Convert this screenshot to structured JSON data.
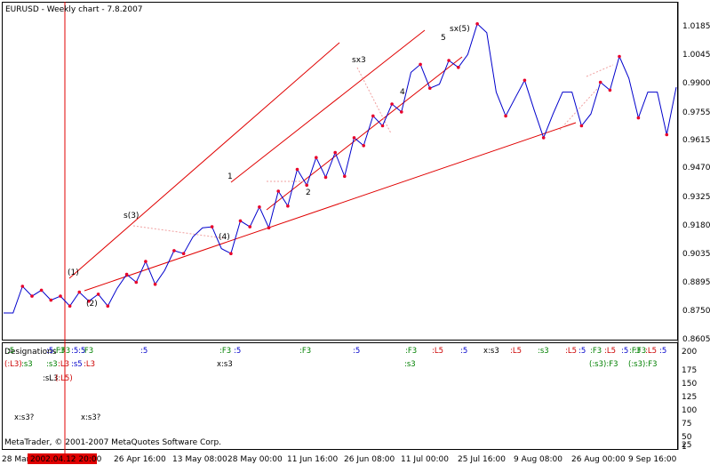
{
  "chart_title": "EURUSD - Weekly chart - 7.8.2007",
  "copyright": "MetaTrader, © 2001-2007 MetaQuotes Software Corp.",
  "indicator_label": "Designations",
  "crosshair_date": "2002.04.12 20:00",
  "colors": {
    "price": "#0000cc",
    "channel": "#e00000",
    "marker": "#e8002a",
    "green": "#008000",
    "red": "#cc0000",
    "blue": "#0000cc",
    "crosshair": "#e00000"
  },
  "price_axis": [
    "1.0185",
    "1.0045",
    "0.9900",
    "0.9755",
    "0.9615",
    "0.9470",
    "0.9325",
    "0.9180",
    "0.9035",
    "0.8895",
    "0.8750",
    "0.8605"
  ],
  "sub_axis": [
    "200",
    "175",
    "150",
    "125",
    "100",
    "75",
    "50",
    "25",
    "1"
  ],
  "time_axis": [
    "28 Mar",
    "26 Apr 16:00",
    "13 May 08:00",
    "28 May 00:00",
    "11 Jun 16:00",
    "26 Jun 08:00",
    "11 Jul 00:00",
    "25 Jul 16:00",
    "9 Aug 08:00",
    "26 Aug 00:00",
    "9 Sep 16:00"
  ],
  "wave_labels": [
    "(1)",
    "(2)",
    "s(3)",
    "(4)",
    "1",
    "2",
    "sx3",
    "4",
    "5",
    "sx(5)"
  ],
  "sub_row1": [
    ":5",
    ":F3",
    ":F3",
    ":5",
    ":5",
    ":F3",
    ":5",
    ":F3",
    ":5",
    ":F3",
    ":5",
    ":F3",
    ":5",
    ":F3",
    ":L5",
    ":5",
    "x:s3",
    ":L5",
    ":s3",
    ":L5",
    ":5",
    ":F3",
    ":L5",
    ":F3",
    ":5",
    ":L5",
    ":5"
  ],
  "sub_row2": [
    "(:L3)",
    ":s3",
    ":s3",
    ":L3",
    ":s5",
    ":L3",
    "x:s3",
    ":s3",
    "(:s3):F3",
    "(:s3):F3"
  ],
  "sub_row3": [
    ":sL3",
    "(:L5)"
  ],
  "sub_row4": [
    "x:s3?",
    "x:s3?"
  ],
  "chart_data": {
    "type": "line",
    "title": "EURUSD - Weekly chart - 7.8.2007",
    "xlabel": "",
    "ylabel": "",
    "ylim": [
      0.8605,
      1.0185
    ],
    "y": [
      0.8735,
      0.8735,
      0.887,
      0.882,
      0.885,
      0.88,
      0.882,
      0.877,
      0.884,
      0.8795,
      0.883,
      0.877,
      0.886,
      0.893,
      0.889,
      0.8995,
      0.888,
      0.895,
      0.905,
      0.9035,
      0.912,
      0.9165,
      0.917,
      0.906,
      0.9035,
      0.92,
      0.917,
      0.927,
      0.9165,
      0.935,
      0.9275,
      0.946,
      0.938,
      0.952,
      0.942,
      0.9545,
      0.9425,
      0.962,
      0.958,
      0.973,
      0.968,
      0.979,
      0.975,
      0.995,
      0.999,
      0.987,
      0.989,
      1.001,
      0.9975,
      1.004,
      1.0195,
      1.015,
      0.985,
      0.973,
      0.982,
      0.991,
      0.976,
      0.962,
      0.974,
      0.985,
      0.985,
      0.968,
      0.974,
      0.99,
      0.986,
      1.003,
      0.992,
      0.972,
      0.985,
      0.985,
      0.9635,
      0.9875
    ]
  }
}
